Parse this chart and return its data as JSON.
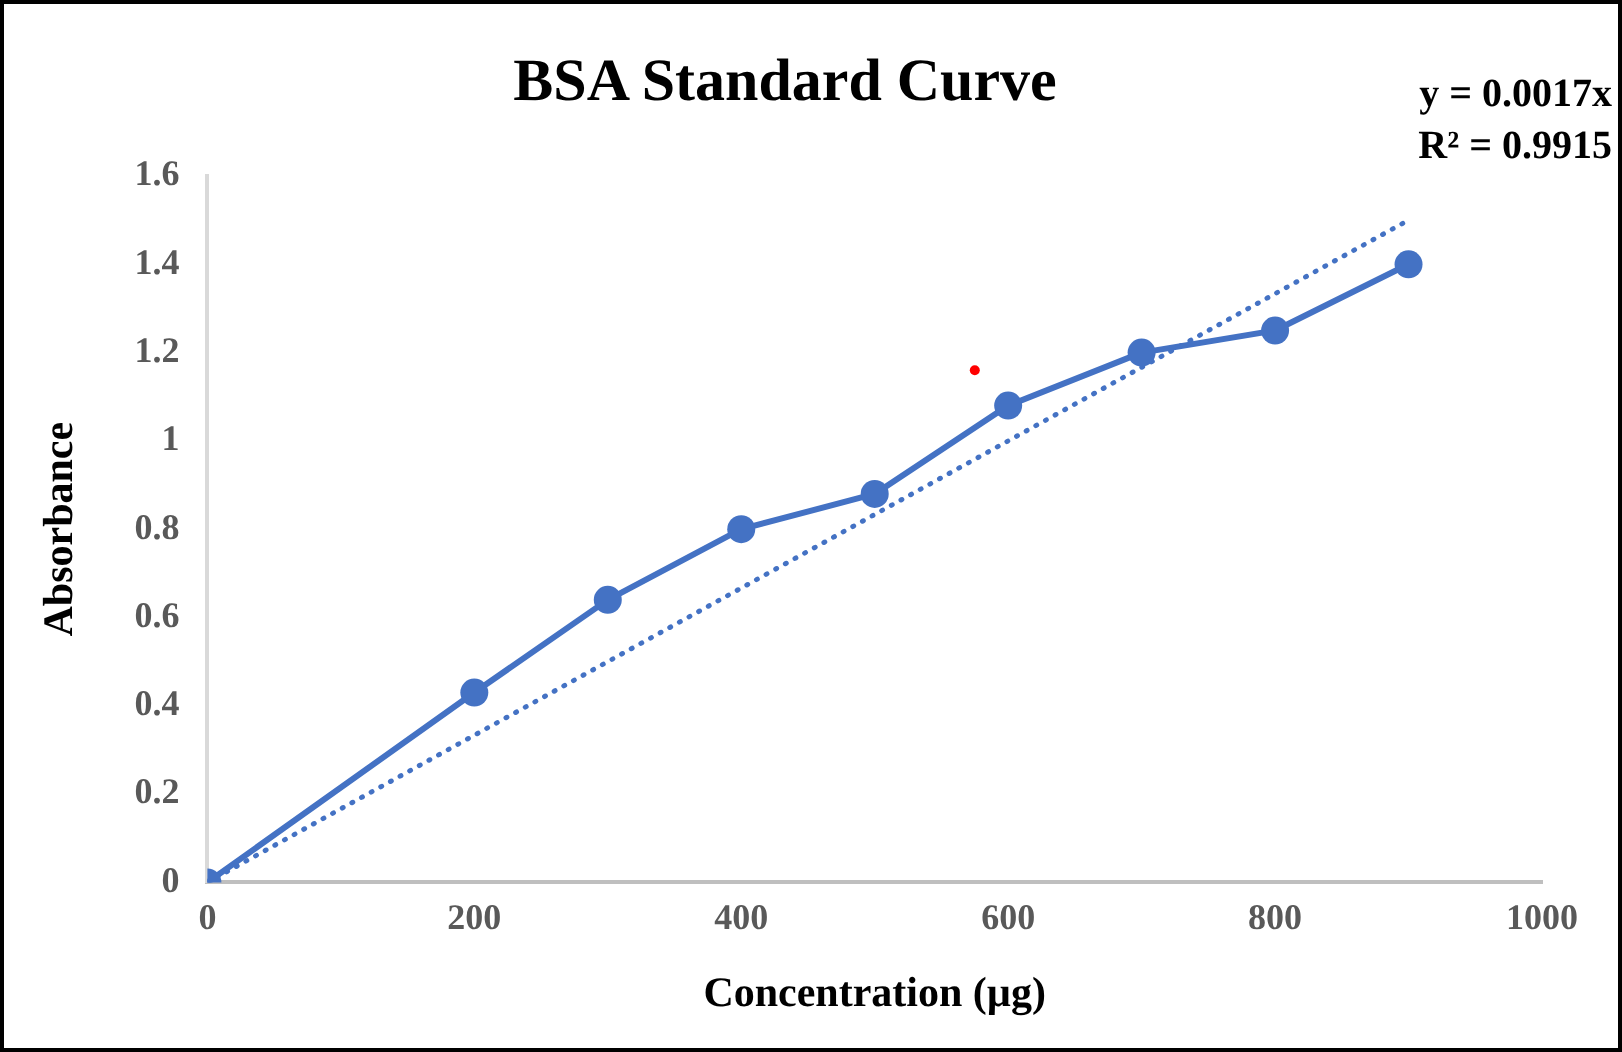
{
  "chart_data": {
    "type": "line",
    "title": "BSA Standard Curve",
    "xlabel": "Concentration (µg)",
    "ylabel": "Absorbance",
    "x": [
      0,
      200,
      300,
      400,
      500,
      600,
      700,
      800,
      900
    ],
    "series": [
      {
        "type": "line",
        "color": "#4472c4",
        "marker": "circle",
        "line_style": "solid",
        "values": [
          0,
          0.43,
          0.64,
          0.8,
          0.88,
          1.08,
          1.2,
          1.25,
          1.4
        ]
      },
      {
        "type": "line",
        "color": "#4472c4",
        "marker": "none",
        "line_style": "dotted",
        "x": [
          0,
          900
        ],
        "values": [
          0,
          1.5
        ]
      },
      {
        "type": "scatter",
        "color": "#ff0000",
        "marker": "circle",
        "x": [
          575
        ],
        "values": [
          1.16
        ]
      }
    ],
    "xlim": [
      0,
      1000
    ],
    "xticks": [
      0,
      200,
      400,
      600,
      800,
      1000
    ],
    "ylim": [
      0,
      1.6
    ],
    "yticks": [
      0,
      0.2,
      0.4,
      0.6,
      0.8,
      1,
      1.2,
      1.4,
      1.6
    ],
    "grid": false,
    "legend": false,
    "annotations": [
      "y = 0.0017x",
      "R² = 0.9915"
    ]
  }
}
